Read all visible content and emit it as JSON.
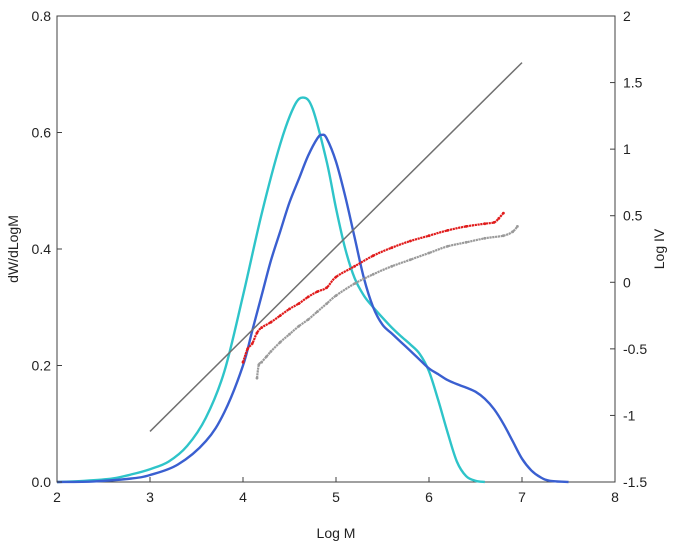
{
  "chart_data": {
    "type": "line",
    "xlabel": "Log M",
    "ylabel_left": "dW/dLogM",
    "ylabel_right": "Log IV",
    "xlim": [
      2,
      8
    ],
    "ylim_left": [
      0,
      0.8
    ],
    "ylim_right": [
      -1.5,
      2
    ],
    "x_ticks": [
      "2",
      "3",
      "4",
      "5",
      "6",
      "7",
      "8"
    ],
    "y_left_ticks": [
      "0.0",
      "0.2",
      "0.4",
      "0.6",
      "0.8"
    ],
    "y_right_ticks": [
      "-1.5",
      "-1",
      "-0.5",
      "0",
      "0.5",
      "1",
      "1.5",
      "2"
    ],
    "grid": false,
    "series": [
      {
        "axis": "left",
        "color": "#2ec4c9",
        "style": "line",
        "x": [
          2.0,
          2.3,
          2.6,
          2.8,
          3.0,
          3.2,
          3.4,
          3.6,
          3.8,
          4.0,
          4.2,
          4.4,
          4.55,
          4.65,
          4.75,
          4.9,
          5.0,
          5.1,
          5.2,
          5.3,
          5.4,
          5.5,
          5.6,
          5.7,
          5.8,
          5.9,
          6.0,
          6.1,
          6.2,
          6.3,
          6.4,
          6.5,
          6.6
        ],
        "y": [
          0.0,
          0.002,
          0.006,
          0.013,
          0.022,
          0.035,
          0.062,
          0.11,
          0.19,
          0.32,
          0.46,
          0.58,
          0.645,
          0.66,
          0.64,
          0.55,
          0.47,
          0.4,
          0.35,
          0.32,
          0.3,
          0.282,
          0.265,
          0.25,
          0.236,
          0.22,
          0.19,
          0.14,
          0.085,
          0.035,
          0.01,
          0.002,
          0.0
        ]
      },
      {
        "axis": "left",
        "color": "#3a5fd0",
        "style": "line",
        "x": [
          2.0,
          2.4,
          2.8,
          3.0,
          3.3,
          3.6,
          3.8,
          4.0,
          4.1,
          4.2,
          4.3,
          4.4,
          4.5,
          4.6,
          4.7,
          4.8,
          4.85,
          4.9,
          5.0,
          5.1,
          5.2,
          5.3,
          5.4,
          5.5,
          5.6,
          5.7,
          5.8,
          5.9,
          6.0,
          6.1,
          6.2,
          6.3,
          6.4,
          6.5,
          6.6,
          6.7,
          6.8,
          6.9,
          7.0,
          7.1,
          7.2,
          7.3,
          7.5
        ],
        "y": [
          0.0,
          0.001,
          0.006,
          0.012,
          0.03,
          0.07,
          0.12,
          0.2,
          0.26,
          0.32,
          0.38,
          0.43,
          0.48,
          0.52,
          0.56,
          0.59,
          0.596,
          0.59,
          0.55,
          0.49,
          0.42,
          0.35,
          0.3,
          0.27,
          0.255,
          0.24,
          0.225,
          0.21,
          0.195,
          0.185,
          0.175,
          0.168,
          0.162,
          0.155,
          0.143,
          0.125,
          0.1,
          0.07,
          0.04,
          0.02,
          0.008,
          0.002,
          0.0
        ]
      },
      {
        "axis": "right",
        "color": "#707070",
        "style": "line",
        "x": [
          3.0,
          7.0
        ],
        "y": [
          -1.12,
          1.65
        ]
      },
      {
        "axis": "right",
        "color": "#e01b1b",
        "style": "dots",
        "x": [
          4.0,
          4.05,
          4.1,
          4.15,
          4.2,
          4.3,
          4.4,
          4.5,
          4.6,
          4.7,
          4.8,
          4.9,
          5.0,
          5.2,
          5.4,
          5.6,
          5.8,
          6.0,
          6.2,
          6.4,
          6.6,
          6.7,
          6.75,
          6.8
        ],
        "y": [
          -0.6,
          -0.5,
          -0.46,
          -0.38,
          -0.34,
          -0.3,
          -0.25,
          -0.2,
          -0.16,
          -0.11,
          -0.07,
          -0.04,
          0.04,
          0.12,
          0.2,
          0.26,
          0.31,
          0.35,
          0.39,
          0.42,
          0.44,
          0.45,
          0.48,
          0.52
        ]
      },
      {
        "axis": "right",
        "color": "#9a9a9a",
        "style": "dots",
        "x": [
          4.15,
          4.17,
          4.2,
          4.25,
          4.3,
          4.4,
          4.5,
          4.6,
          4.7,
          4.8,
          4.9,
          5.0,
          5.2,
          5.4,
          5.6,
          5.8,
          6.0,
          6.2,
          6.4,
          6.6,
          6.8,
          6.9,
          6.95
        ],
        "y": [
          -0.72,
          -0.62,
          -0.6,
          -0.56,
          -0.52,
          -0.45,
          -0.39,
          -0.33,
          -0.28,
          -0.22,
          -0.16,
          -0.1,
          -0.01,
          0.06,
          0.12,
          0.17,
          0.22,
          0.27,
          0.3,
          0.33,
          0.35,
          0.38,
          0.42
        ]
      }
    ]
  }
}
